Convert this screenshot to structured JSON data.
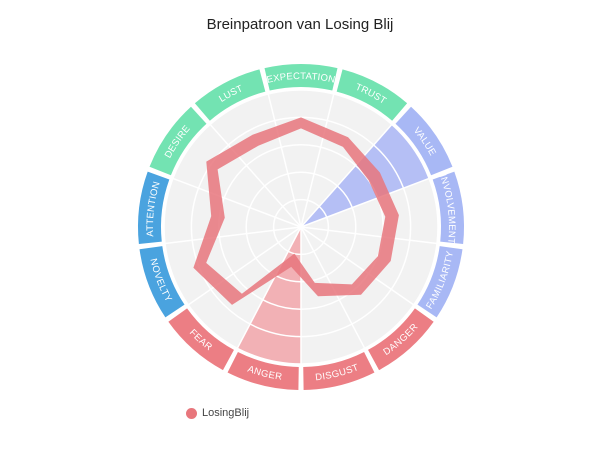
{
  "chart_data": {
    "type": "radar",
    "title": "Breinpatroon van Losing Blij",
    "categories": [
      "EXPECTATION",
      "TRUST",
      "VALUE",
      "INVOLVEMENT",
      "FAMILIARITY",
      "DANGER",
      "DISGUST",
      "ANGER",
      "FEAR",
      "NOVELTY",
      "ATTENTION",
      "DESIRE",
      "LUST"
    ],
    "category_groups": [
      "green",
      "green",
      "blue",
      "blue",
      "blue",
      "red",
      "red",
      "red",
      "red",
      "cyan",
      "cyan",
      "green",
      "green"
    ],
    "highlighted_categories": [
      "VALUE",
      "ANGER"
    ],
    "highlight_levels": [
      0,
      0,
      1.0,
      0,
      0,
      0,
      0,
      1.0,
      0,
      0,
      0,
      0,
      0
    ],
    "rlim": [
      0,
      1
    ],
    "grid_rings": 5,
    "series": [
      {
        "name": "LosingBlij",
        "inner": [
          0.72,
          0.66,
          0.6,
          0.62,
          0.6,
          0.56,
          0.42,
          0.2,
          0.65,
          0.74,
          0.56,
          0.74,
          0.67
        ],
        "outer": [
          0.8,
          0.74,
          0.7,
          0.72,
          0.7,
          0.66,
          0.52,
          0.3,
          0.76,
          0.84,
          0.66,
          0.84,
          0.76
        ]
      }
    ],
    "legend": {
      "position": "bottom-left",
      "label": "LosingBlij"
    }
  },
  "colors": {
    "green": "#73e3b2",
    "blue": "#a8b8f5",
    "red": "#ec7e84",
    "cyan": "#4aa3df",
    "series": "#e8767c",
    "plot_bg": "#f2f2f2",
    "grid": "#ffffff",
    "value_highlight": "#aab6f6",
    "anger_highlight": "#f2a6aa"
  }
}
